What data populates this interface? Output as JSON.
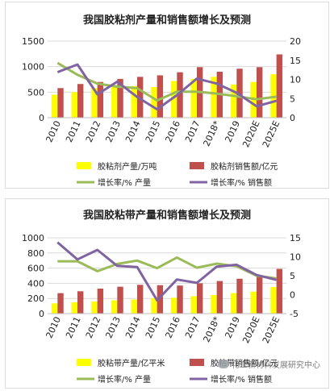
{
  "chart_data": [
    {
      "type": "bar",
      "title": "我国胶粘剂产量和销售额增长及预测",
      "categories": [
        "2010",
        "2011",
        "2012",
        "2013",
        "2014",
        "2015",
        "2016",
        "2017",
        "2018*",
        "2019",
        "2020E",
        "2025E"
      ],
      "y_left": {
        "min": 0,
        "max": 1500,
        "ticks": [
          0,
          500,
          1000,
          1500
        ],
        "tick_labels": [
          "0",
          "500",
          "1000",
          "1500"
        ]
      },
      "y_right": {
        "min": 0,
        "max": 20,
        "ticks": [
          0,
          5,
          10,
          15,
          20
        ],
        "tick_labels": [
          "0",
          "5",
          "10",
          "15",
          "20"
        ]
      },
      "series": [
        {
          "name": "胶粘剂产量/万吨",
          "kind": "bar",
          "axis": "left",
          "color": "#ffff00",
          "values": [
            450,
            500,
            580,
            600,
            620,
            600,
            720,
            760,
            800,
            650,
            700,
            850
          ]
        },
        {
          "name": "胶粘剂销售额/亿元",
          "kind": "bar",
          "axis": "left",
          "color": "#c0504d",
          "values": [
            580,
            660,
            700,
            760,
            800,
            830,
            890,
            990,
            900,
            960,
            990,
            1240
          ]
        },
        {
          "name": "增长率/% 产量",
          "kind": "line",
          "axis": "right",
          "color": "#9bbb59",
          "values": [
            14.3,
            11.2,
            8.9,
            8.1,
            7.7,
            4.5,
            6.8,
            6.8,
            6.3,
            5.6,
            4.8,
            5.5
          ]
        },
        {
          "name": "增长率/% 销售额",
          "kind": "line",
          "axis": "right",
          "color": "#8064a2",
          "values": [
            11.9,
            13.9,
            6.1,
            9.4,
            5.4,
            2.2,
            5.9,
            10.2,
            8.9,
            6.5,
            3.0,
            4.4
          ]
        }
      ],
      "legend_position": "bottom",
      "grid": true
    },
    {
      "type": "bar",
      "title": "我国胶粘带产量和销售额增长及预测",
      "categories": [
        "2010",
        "2011",
        "2012",
        "2013",
        "2014",
        "2015",
        "2016",
        "2017",
        "2018*",
        "2019",
        "2020E",
        "2025E"
      ],
      "y_left": {
        "min": 0,
        "max": 1000,
        "ticks": [
          0,
          200,
          400,
          600,
          800,
          1000
        ],
        "tick_labels": [
          "0",
          "200",
          "400",
          "600",
          "800",
          "1000"
        ]
      },
      "y_right": {
        "min": -5,
        "max": 15,
        "ticks": [
          -5,
          0,
          5,
          10,
          15
        ],
        "tick_labels": [
          "-5",
          "0",
          "5",
          "10",
          "15"
        ]
      },
      "series": [
        {
          "name": "胶粘带产量/亿平米",
          "kind": "bar",
          "axis": "left",
          "color": "#ffff00",
          "values": [
            135,
            150,
            160,
            175,
            185,
            205,
            210,
            230,
            245,
            270,
            290,
            350
          ]
        },
        {
          "name": "胶粘带销售额/亿元",
          "kind": "bar",
          "axis": "left",
          "color": "#c0504d",
          "values": [
            270,
            295,
            330,
            355,
            380,
            375,
            370,
            400,
            430,
            460,
            490,
            590
          ]
        },
        {
          "name": "增长率/% 产量",
          "kind": "line",
          "axis": "right",
          "color": "#9bbb59",
          "values": [
            8.8,
            8.8,
            6.2,
            8.1,
            9.0,
            7.0,
            9.8,
            7.1,
            8.2,
            7.5,
            5.0,
            4.3
          ]
        },
        {
          "name": "增长率/% 销售额",
          "kind": "line",
          "axis": "right",
          "color": "#8064a2",
          "values": [
            13.8,
            9.3,
            11.8,
            7.6,
            7.3,
            -1.5,
            4.0,
            3.1,
            7.4,
            7.9,
            5.2,
            3.9
          ]
        }
      ],
      "legend_position": "bottom",
      "grid": true
    }
  ],
  "watermark": "化工新材料发展研究中心"
}
